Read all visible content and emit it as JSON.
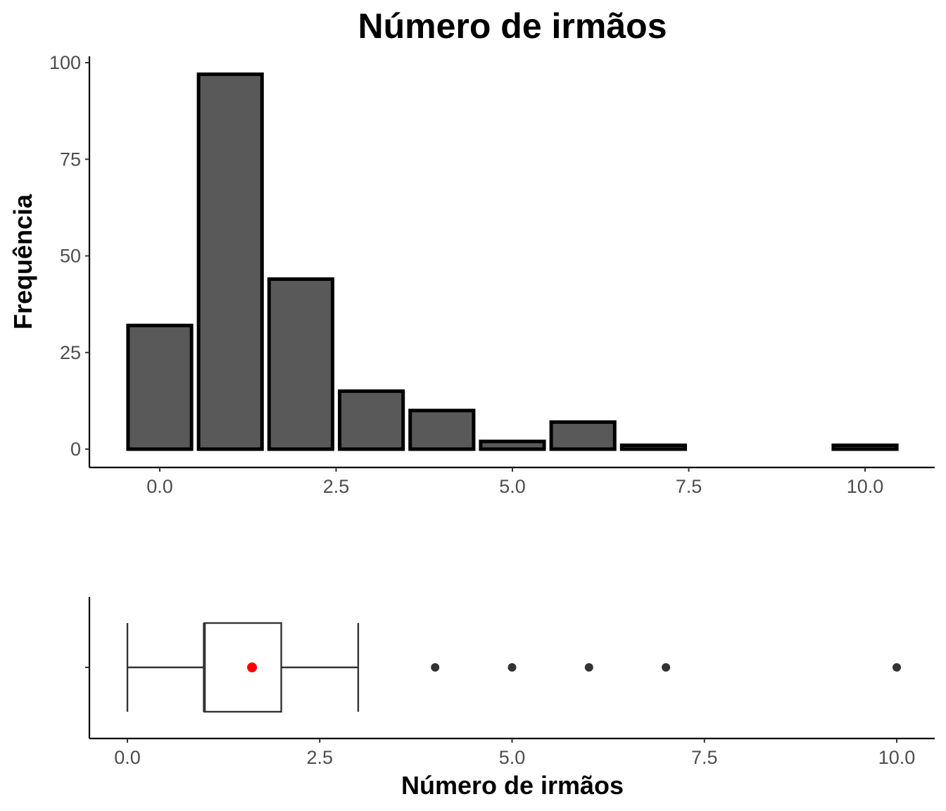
{
  "chart_data": [
    {
      "type": "bar",
      "title": "Número de irmãos",
      "xlabel": "",
      "ylabel": "Frequência",
      "x": [
        0,
        1,
        2,
        3,
        4,
        5,
        6,
        7,
        10
      ],
      "values": [
        32,
        97,
        44,
        15,
        10,
        2,
        7,
        1,
        1
      ],
      "xlim": [
        -0.5,
        11
      ],
      "ylim": [
        0,
        100
      ],
      "x_ticks": [
        "0.0",
        "2.5",
        "5.0",
        "7.5",
        "10.0"
      ],
      "y_ticks": [
        "0",
        "25",
        "50",
        "75",
        "100"
      ],
      "bar_fill": "#595959",
      "bar_outline": "#000000",
      "grid": false
    },
    {
      "type": "boxplot",
      "xlabel": "Número de irmãos",
      "xlim": [
        -0.25,
        10.25
      ],
      "x_ticks": [
        "0.0",
        "2.5",
        "5.0",
        "7.5",
        "10.0"
      ],
      "whisker_low": 0,
      "q1": 1,
      "median": 1,
      "q3": 2,
      "whisker_high": 3,
      "mean": 1.62,
      "outliers": [
        4,
        5,
        6,
        7,
        10
      ],
      "mean_color": "#ff0000",
      "outlier_color": "#333333",
      "grid": false
    }
  ]
}
